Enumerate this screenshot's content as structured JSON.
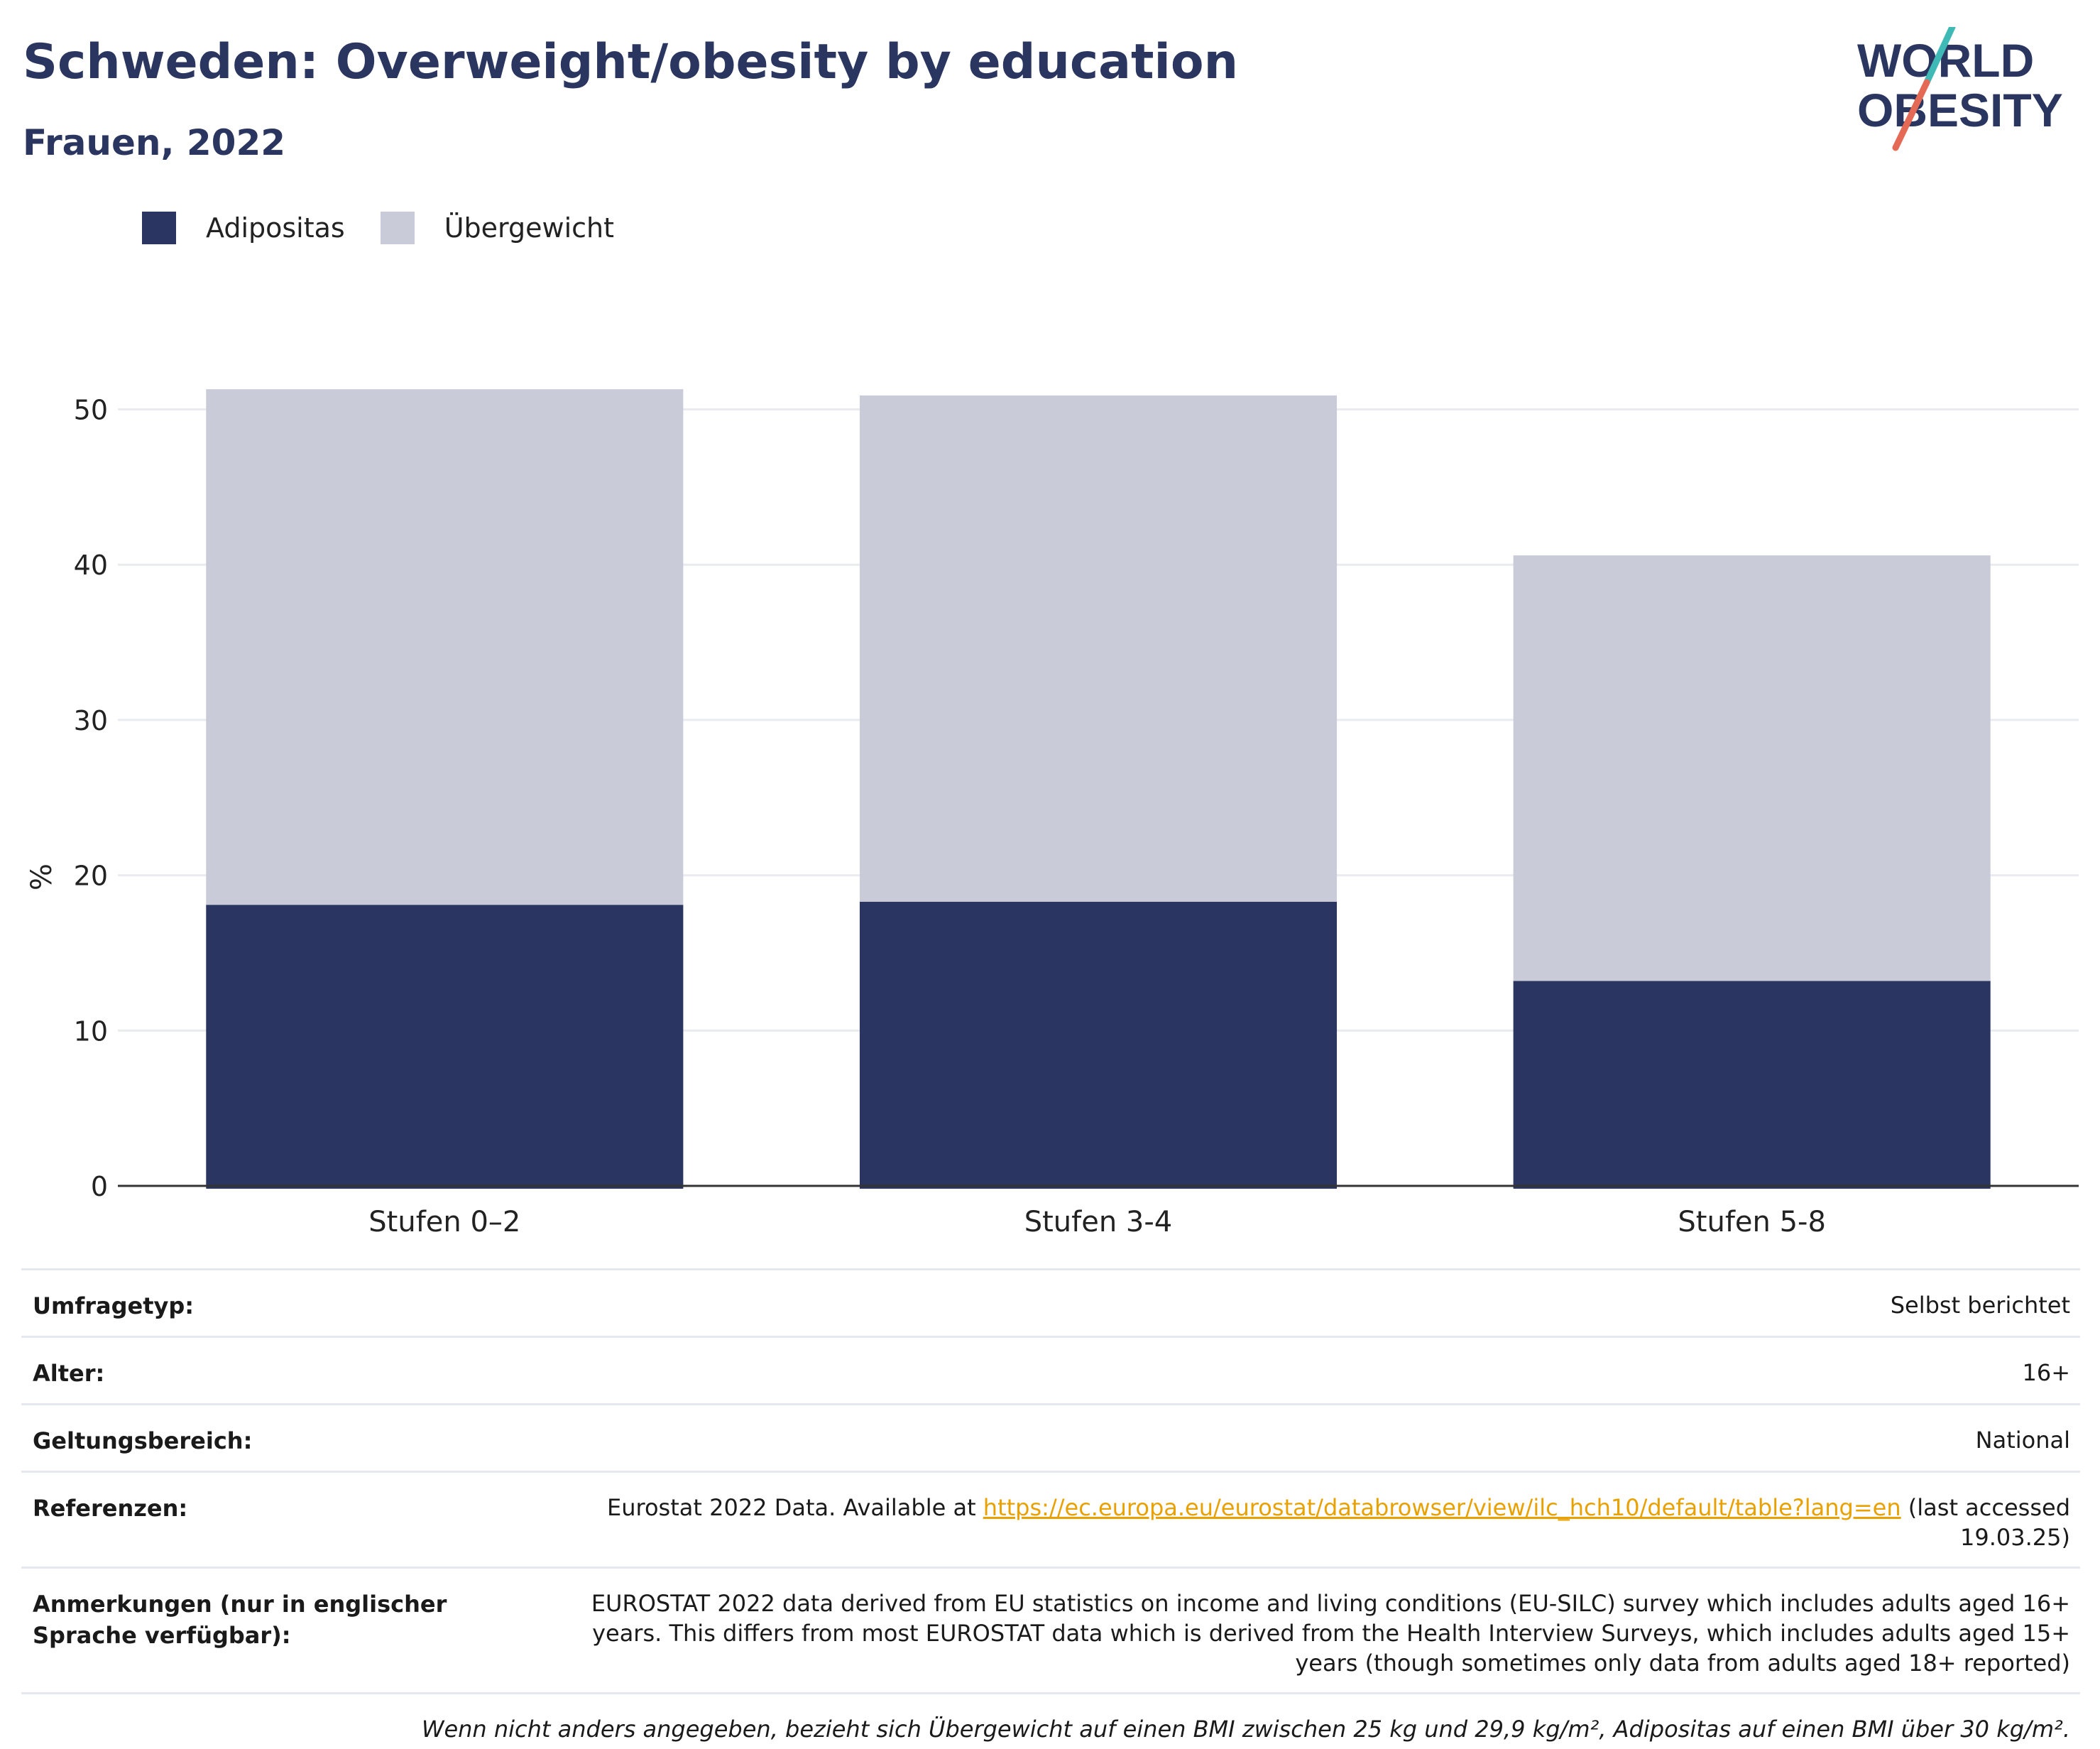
{
  "header": {
    "title": "Schweden: Overweight/obesity by education",
    "subtitle": "Frauen, 2022"
  },
  "logo": {
    "line1": "WORLD",
    "line2": "OBESITY",
    "colors": {
      "text": "#2a3660",
      "slash_top": "#3fb9b5",
      "slash_bottom": "#e46a55"
    }
  },
  "colors": {
    "obesity": "#2a3661",
    "overweight": "#c9ccd8",
    "axis": "#333333",
    "grid": "#e9ebf0"
  },
  "chart_data": {
    "type": "bar",
    "stacked": true,
    "categories": [
      "Stufen 0–2",
      "Stufen 3-4",
      "Stufen 5-8"
    ],
    "series": [
      {
        "name": "Adipositas",
        "values": [
          18.1,
          18.3,
          13.2
        ]
      },
      {
        "name": "Übergewicht",
        "values": [
          33.2,
          32.6,
          27.4
        ]
      }
    ],
    "ylabel": "%",
    "ylim": [
      0,
      53.5
    ],
    "yticks": [
      "0",
      "10",
      "20",
      "30",
      "40",
      "50"
    ],
    "grid": true,
    "legend": "top-left"
  },
  "meta": {
    "survey_label": "Umfragetyp:",
    "survey_value": "Selbst berichtet",
    "age_label": "Alter:",
    "age_value": "16+",
    "scope_label": "Geltungsbereich:",
    "scope_value": "National",
    "refs_label": "Referenzen:",
    "refs_prefix": "Eurostat 2022 Data. Available at ",
    "refs_link": "https://ec.europa.eu/eurostat/databrowser/view/ilc_hch10/default/table?lang=en",
    "refs_suffix": " (last accessed 19.03.25)",
    "notes_label": "Anmerkungen (nur in englischer Sprache verfügbar):",
    "notes_value": "EUROSTAT 2022 data derived from EU statistics on income and living conditions (EU-SILC) survey which includes adults aged 16+ years. This differs from most EUROSTAT data which is derived from the Health Interview Surveys, which includes adults aged 15+ years (though sometimes only data from adults aged 18+ reported)",
    "footnote": "Wenn nicht anders angegeben, bezieht sich Übergewicht auf einen BMI zwischen 25 kg und 29,9 kg/m², Adipositas auf einen BMI über 30 kg/m²."
  }
}
